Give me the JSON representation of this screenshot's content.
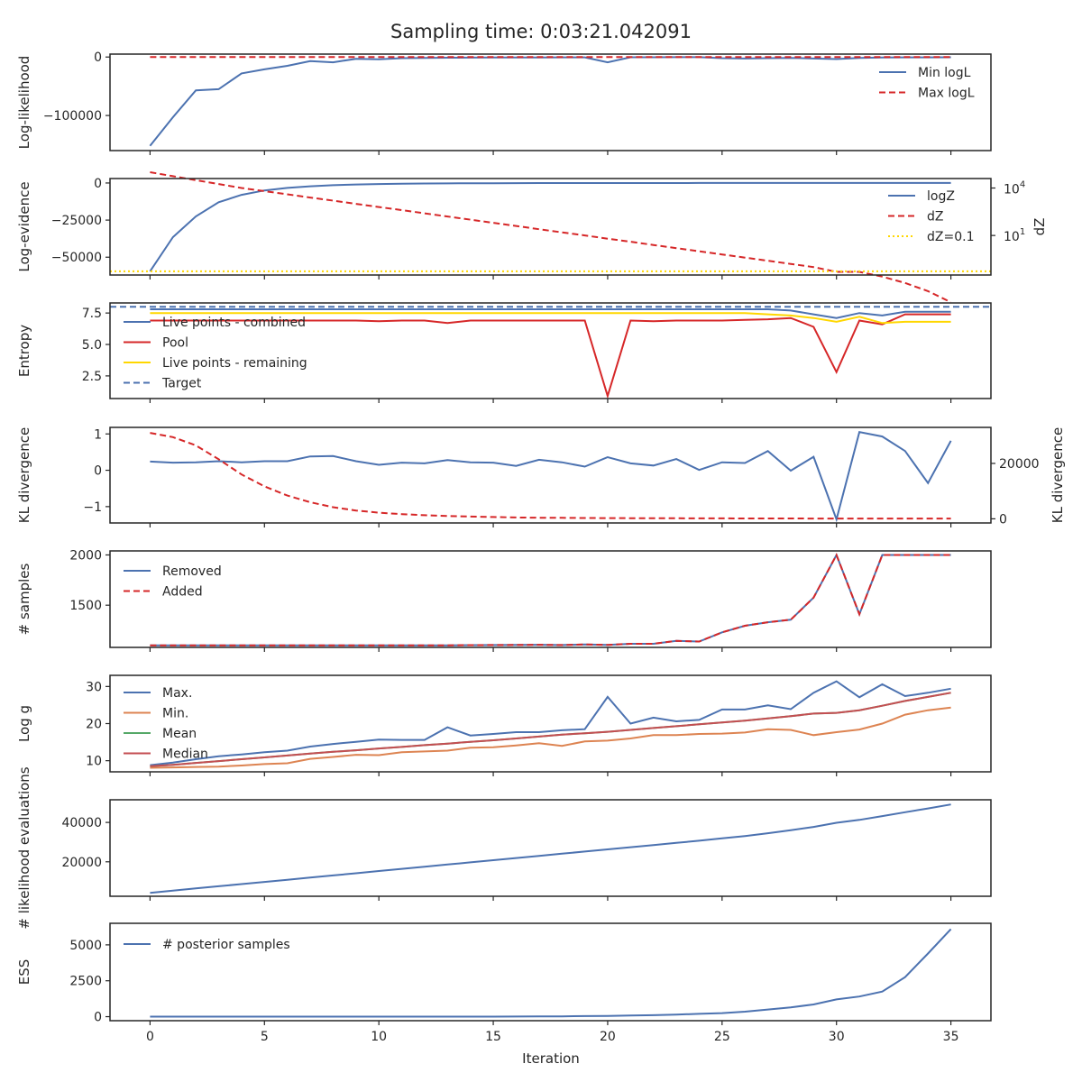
{
  "title": "Sampling time: 0:03:21.042091",
  "xlabel": "Iteration",
  "colors": {
    "blue": "#4c72b0",
    "red": "#d62728",
    "gold": "#ffd700",
    "orange": "#dd8452",
    "green": "#55a868",
    "crimson": "#c44e52"
  },
  "chart_data": [
    {
      "type": "line",
      "ylabel": "Log-likelihood",
      "ylim": [
        -160000,
        5000
      ],
      "yticks": [
        0,
        -100000
      ],
      "ytick_labels": [
        "0",
        "−100000"
      ],
      "legend_position": "top-right",
      "series": [
        {
          "name": "Min logL",
          "style": "solid",
          "color": "#4c72b0",
          "values": [
            -152000,
            -103000,
            -57000,
            -55000,
            -28000,
            -21000,
            -15000,
            -7000,
            -9000,
            -3000,
            -4000,
            -2000,
            -1500,
            -1200,
            -1000,
            -900,
            -800,
            -700,
            -600,
            -500,
            -9000,
            -400,
            -350,
            -300,
            -250,
            -2000,
            -2500,
            -2000,
            -1500,
            -2500,
            -3500,
            -1500,
            -800,
            -600,
            -500,
            -400
          ]
        },
        {
          "name": "Max logL",
          "style": "dashed",
          "color": "#d62728",
          "values": [
            0,
            0,
            0,
            0,
            0,
            0,
            0,
            0,
            0,
            0,
            0,
            0,
            0,
            0,
            0,
            0,
            0,
            0,
            0,
            0,
            0,
            0,
            0,
            0,
            0,
            0,
            0,
            0,
            0,
            0,
            0,
            0,
            0,
            0,
            0,
            0
          ]
        }
      ]
    },
    {
      "type": "line",
      "ylabel": "Log-evidence",
      "y2label": "dZ",
      "y2scale": "log",
      "ylim": [
        -62000,
        3000
      ],
      "yticks": [
        0,
        -25000,
        -50000
      ],
      "ytick_labels": [
        "0",
        "−25000",
        "−50000"
      ],
      "y2lim_log10": [
        -1.5,
        4.6
      ],
      "y2ticks_log10": [
        1,
        4
      ],
      "y2tick_labels": [
        "10",
        "10"
      ],
      "y2tick_exponents": [
        "1",
        "4"
      ],
      "legend_position": "top-right",
      "series": [
        {
          "name": "logZ",
          "axis": "left",
          "style": "solid",
          "color": "#4c72b0",
          "values": [
            -59500,
            -36500,
            -22500,
            -13000,
            -8000,
            -5000,
            -3300,
            -2200,
            -1500,
            -1000,
            -700,
            -500,
            -350,
            -250,
            -180,
            -130,
            -90,
            -60,
            -40,
            -30,
            -20,
            -15,
            -10,
            -8,
            -6,
            -4,
            -3,
            -2,
            -2,
            -1,
            -1,
            -1,
            -1,
            0,
            0,
            0
          ]
        },
        {
          "name": "dZ",
          "axis": "right",
          "style": "dashed",
          "color": "#d62728",
          "values": [
            100000,
            56000,
            31600,
            17800,
            10000,
            6300,
            4000,
            2500,
            1600,
            1000,
            630,
            400,
            251,
            158,
            100,
            63,
            40,
            25,
            15.8,
            10,
            6.3,
            4,
            2.5,
            1.58,
            1,
            0.63,
            0.4,
            0.25,
            0.158,
            0.1,
            0.05,
            0.05,
            0.025,
            0.01,
            0.003,
            0.0006
          ]
        },
        {
          "name": "dZ=0.1",
          "axis": "left",
          "style": "dotted",
          "color": "#ffd700",
          "values": [
            -59500,
            -59500
          ]
        }
      ]
    },
    {
      "type": "line",
      "ylabel": "Entropy",
      "ylim": [
        0.7,
        8.3
      ],
      "yticks": [
        2.5,
        5.0,
        7.5
      ],
      "ytick_labels": [
        "2.5",
        "5.0",
        "7.5"
      ],
      "legend_position": "top-left",
      "series": [
        {
          "name": "Live points - combined",
          "style": "solid",
          "color": "#4c72b0",
          "values": [
            7.8,
            7.8,
            7.8,
            7.8,
            7.8,
            7.8,
            7.8,
            7.8,
            7.8,
            7.8,
            7.8,
            7.8,
            7.8,
            7.8,
            7.8,
            7.8,
            7.8,
            7.8,
            7.8,
            7.8,
            7.8,
            7.8,
            7.8,
            7.8,
            7.8,
            7.8,
            7.8,
            7.8,
            7.7,
            7.4,
            7.1,
            7.5,
            7.3,
            7.6,
            7.6,
            7.6
          ]
        },
        {
          "name": "Pool",
          "style": "solid",
          "color": "#d62728",
          "values": [
            6.9,
            6.9,
            6.9,
            6.9,
            6.9,
            6.9,
            6.9,
            6.9,
            6.9,
            6.9,
            6.85,
            6.9,
            6.9,
            6.7,
            6.9,
            6.9,
            6.9,
            6.9,
            6.9,
            6.9,
            0.9,
            6.9,
            6.85,
            6.9,
            6.9,
            6.9,
            6.95,
            7.0,
            7.1,
            6.4,
            2.8,
            6.9,
            6.6,
            7.4,
            7.4,
            7.4
          ]
        },
        {
          "name": "Live points - remaining",
          "style": "solid",
          "color": "#ffd700",
          "values": [
            7.5,
            7.5,
            7.5,
            7.5,
            7.5,
            7.5,
            7.5,
            7.5,
            7.5,
            7.5,
            7.5,
            7.5,
            7.5,
            7.5,
            7.5,
            7.5,
            7.5,
            7.5,
            7.5,
            7.5,
            7.5,
            7.5,
            7.5,
            7.5,
            7.5,
            7.5,
            7.5,
            7.4,
            7.3,
            7.1,
            6.8,
            7.2,
            6.7,
            6.8,
            6.8,
            6.8
          ]
        },
        {
          "name": "Target",
          "style": "dashed",
          "color": "#4c72b0",
          "values": [
            8.0,
            8.0
          ]
        }
      ]
    },
    {
      "type": "line",
      "ylabel": "KL divergence",
      "y2label": "KL divergence",
      "ylim": [
        -1.45,
        1.18
      ],
      "yticks": [
        1,
        0,
        -1
      ],
      "ytick_labels": [
        "1",
        "0",
        "−1"
      ],
      "y2lim": [
        -1500,
        33000
      ],
      "y2ticks": [
        20000,
        0
      ],
      "y2tick_labels": [
        "20000",
        "0"
      ],
      "series": [
        {
          "name": "",
          "axis": "left",
          "style": "solid",
          "color": "#4c72b0",
          "values": [
            0.24,
            0.21,
            0.22,
            0.25,
            0.22,
            0.25,
            0.25,
            0.38,
            0.39,
            0.25,
            0.15,
            0.21,
            0.19,
            0.28,
            0.22,
            0.21,
            0.12,
            0.29,
            0.22,
            0.1,
            0.36,
            0.19,
            0.13,
            0.31,
            0.01,
            0.22,
            0.2,
            0.53,
            -0.01,
            0.37,
            -1.35,
            1.05,
            0.93,
            0.53,
            -0.35,
            0.81
          ]
        },
        {
          "name": "",
          "axis": "right",
          "style": "dashed",
          "color": "#d62728",
          "values": [
            31000,
            29500,
            26500,
            21500,
            16000,
            11700,
            8400,
            6000,
            4200,
            3000,
            2200,
            1700,
            1300,
            1000,
            800,
            650,
            500,
            400,
            350,
            300,
            250,
            220,
            200,
            180,
            160,
            150,
            140,
            130,
            120,
            110,
            100,
            100,
            100,
            100,
            100,
            100
          ]
        }
      ]
    },
    {
      "type": "line",
      "ylabel": "# samples",
      "ylim": [
        1080,
        2040
      ],
      "yticks": [
        2000,
        1500
      ],
      "ytick_labels": [
        "2000",
        "1500"
      ],
      "legend_position": "top-left",
      "series": [
        {
          "name": "Removed",
          "style": "solid",
          "color": "#4c72b0",
          "values": [
            1100,
            1100,
            1100,
            1100,
            1100,
            1100,
            1100,
            1100,
            1100,
            1100,
            1100,
            1100,
            1100,
            1101,
            1102,
            1103,
            1104,
            1106,
            1103,
            1110,
            1105,
            1116,
            1116,
            1145,
            1138,
            1230,
            1295,
            1330,
            1355,
            1575,
            2000,
            1410,
            2000,
            2000,
            2000,
            2000
          ]
        },
        {
          "name": "Added",
          "style": "dashed",
          "color": "#d62728",
          "values": [
            1100,
            1100,
            1100,
            1100,
            1100,
            1100,
            1100,
            1100,
            1100,
            1100,
            1100,
            1100,
            1100,
            1101,
            1102,
            1103,
            1104,
            1106,
            1103,
            1110,
            1105,
            1116,
            1116,
            1145,
            1138,
            1230,
            1295,
            1330,
            1355,
            1575,
            2000,
            1410,
            2000,
            2000,
            2000,
            2000
          ]
        }
      ]
    },
    {
      "type": "line",
      "ylabel": "Log g",
      "ylim": [
        7,
        33
      ],
      "yticks": [
        30,
        20,
        10
      ],
      "ytick_labels": [
        "30",
        "20",
        "10"
      ],
      "legend_position": "top-left",
      "series": [
        {
          "name": "Max.",
          "style": "solid",
          "color": "#4c72b0",
          "values": [
            8.8,
            9.5,
            10.4,
            11.2,
            11.7,
            12.3,
            12.7,
            13.8,
            14.5,
            15.1,
            15.7,
            15.6,
            15.6,
            19.0,
            16.8,
            17.2,
            17.7,
            17.7,
            18.2,
            18.5,
            27.2,
            20.0,
            21.6,
            20.6,
            21.0,
            23.8,
            23.8,
            24.9,
            23.9,
            28.3,
            31.4,
            27.1,
            30.6,
            27.4,
            28.3,
            29.4
          ]
        },
        {
          "name": "Min.",
          "style": "solid",
          "color": "#dd8452",
          "values": [
            8.1,
            8.2,
            8.3,
            8.4,
            8.7,
            9.1,
            9.3,
            10.5,
            11.0,
            11.6,
            11.5,
            12.3,
            12.5,
            12.7,
            13.5,
            13.6,
            14.1,
            14.7,
            14.0,
            15.2,
            15.4,
            16.0,
            16.9,
            16.9,
            17.2,
            17.3,
            17.6,
            18.5,
            18.3,
            16.9,
            17.7,
            18.4,
            20.0,
            22.4,
            23.6,
            24.3
          ]
        },
        {
          "name": "Mean",
          "style": "solid",
          "color": "#55a868",
          "values": [
            8.5,
            8.9,
            9.4,
            9.9,
            10.4,
            10.9,
            11.4,
            11.9,
            12.4,
            12.8,
            13.3,
            13.7,
            14.2,
            14.6,
            15.1,
            15.5,
            16.0,
            16.5,
            17.0,
            17.4,
            17.8,
            18.3,
            18.8,
            19.3,
            19.8,
            20.3,
            20.8,
            21.4,
            22.0,
            22.7,
            22.9,
            23.6,
            24.8,
            26.1,
            27.2,
            28.3
          ]
        },
        {
          "name": "Median",
          "style": "solid",
          "color": "#c44e52",
          "values": [
            8.5,
            8.9,
            9.4,
            9.9,
            10.4,
            10.9,
            11.4,
            11.9,
            12.4,
            12.8,
            13.3,
            13.7,
            14.2,
            14.6,
            15.1,
            15.5,
            16.0,
            16.5,
            17.0,
            17.4,
            17.8,
            18.3,
            18.8,
            19.3,
            19.8,
            20.3,
            20.8,
            21.4,
            22.0,
            22.7,
            22.9,
            23.6,
            24.8,
            26.1,
            27.2,
            28.3
          ]
        }
      ]
    },
    {
      "type": "line",
      "ylabel": "# likelihood evaluations",
      "ylim": [
        2500,
        51500
      ],
      "yticks": [
        40000,
        20000
      ],
      "ytick_labels": [
        "40000",
        "20000"
      ],
      "series": [
        {
          "name": "",
          "style": "solid",
          "color": "#4c72b0",
          "values": [
            4200,
            5400,
            6500,
            7600,
            8700,
            9800,
            10900,
            12000,
            13100,
            14200,
            15300,
            16400,
            17500,
            18600,
            19700,
            20800,
            21900,
            23000,
            24100,
            25200,
            26300,
            27400,
            28500,
            29600,
            30700,
            31900,
            33100,
            34500,
            36000,
            37700,
            39800,
            41300,
            43200,
            45200,
            47100,
            49100
          ]
        }
      ]
    },
    {
      "type": "line",
      "ylabel": "ESS",
      "ylim": [
        -280,
        6500
      ],
      "yticks": [
        5000,
        2500,
        0
      ],
      "ytick_labels": [
        "5000",
        "2500",
        "0"
      ],
      "legend_position": "top-left",
      "series": [
        {
          "name": "# posterior samples",
          "style": "solid",
          "color": "#4c72b0",
          "values": [
            0,
            0,
            0,
            0,
            0,
            0,
            0,
            0,
            0,
            0,
            0,
            0,
            0,
            0,
            0,
            0,
            10,
            20,
            20,
            40,
            50,
            80,
            100,
            150,
            200,
            250,
            350,
            500,
            650,
            850,
            1200,
            1400,
            1750,
            2750,
            4400,
            6100
          ]
        }
      ]
    }
  ],
  "xaxis": {
    "xlim": [
      -1.75,
      36.75
    ],
    "xticks": [
      0,
      5,
      10,
      15,
      20,
      25,
      30,
      35
    ],
    "xtick_labels": [
      "0",
      "5",
      "10",
      "15",
      "20",
      "25",
      "30",
      "35"
    ]
  }
}
